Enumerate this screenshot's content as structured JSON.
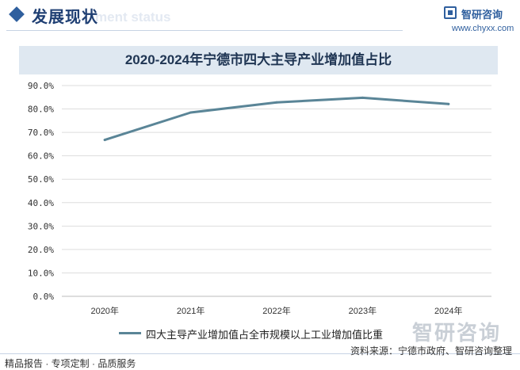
{
  "header": {
    "section_title": "发展现状",
    "ghost_text": "ment status",
    "brand_name": "智研咨询",
    "brand_url": "www.chyxx.com"
  },
  "chart_data": {
    "type": "line",
    "title": "2020-2024年宁德市四大主导产业增加值占比",
    "categories": [
      "2020年",
      "2021年",
      "2022年",
      "2023年",
      "2024年"
    ],
    "series": [
      {
        "name": "四大主导产业增加值占全市规模以上工业增加值比重",
        "values": [
          66.8,
          78.5,
          82.8,
          84.8,
          82.1
        ],
        "color": "#5a8597"
      }
    ],
    "ylim": [
      0,
      90
    ],
    "yticks": [
      "0.0%",
      "10.0%",
      "20.0%",
      "30.0%",
      "40.0%",
      "50.0%",
      "60.0%",
      "70.0%",
      "80.0%",
      "90.0%"
    ],
    "ytick_values": [
      0,
      10,
      20,
      30,
      40,
      50,
      60,
      70,
      80,
      90
    ],
    "grid": true,
    "legend": "bottom"
  },
  "footer": {
    "left": "精品报告 · 专项定制 · 品质服务",
    "source": "资料来源：宁德市政府、智研咨询整理",
    "watermark": "智研咨询"
  },
  "colors": {
    "accent": "#2f5f9e",
    "title_bar": "#dfe8f1",
    "line": "#5a8597",
    "grid": "#dddddd"
  }
}
